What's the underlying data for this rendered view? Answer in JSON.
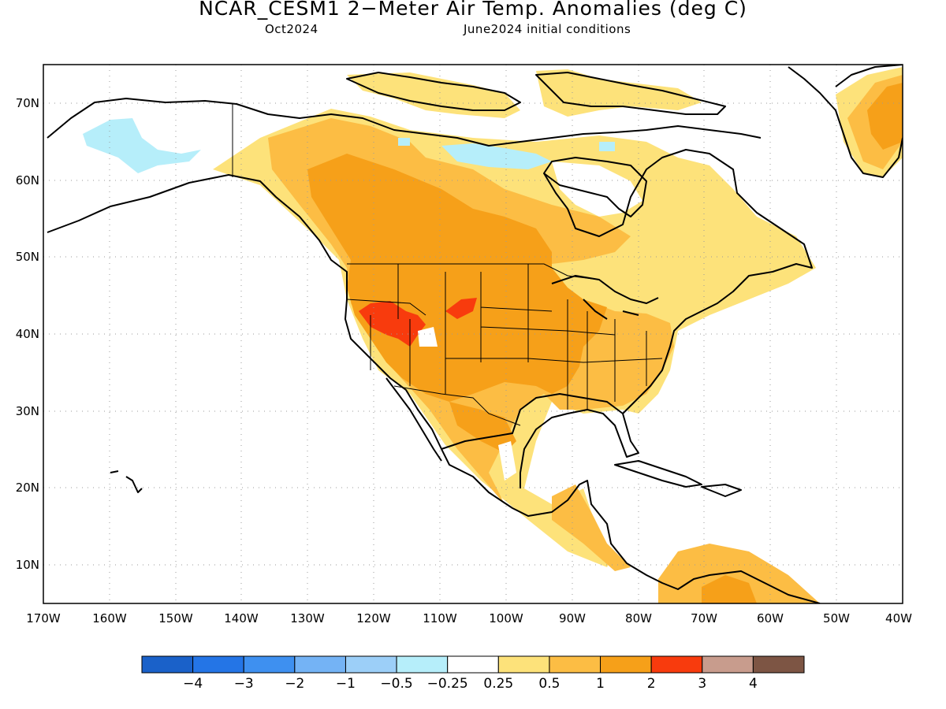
{
  "title": "NCAR_CESM1 2−Meter Air Temp. Anomalies (deg C)",
  "subtitle_left": "Oct2024",
  "subtitle_right": "June2024 initial conditions",
  "lat_labels": [
    "70N",
    "60N",
    "50N",
    "40N",
    "30N",
    "20N",
    "10N"
  ],
  "lon_labels": [
    "170W",
    "160W",
    "150W",
    "140W",
    "130W",
    "120W",
    "110W",
    "100W",
    "90W",
    "80W",
    "70W",
    "60W",
    "50W",
    "40W"
  ],
  "colorbar": {
    "colors": [
      "#1a61c9",
      "#2475e6",
      "#3e90f0",
      "#74b3f5",
      "#9ccff8",
      "#b6eefa",
      "#ffffff",
      "#fde27a",
      "#fcbd44",
      "#f6a019",
      "#f83b0d",
      "#c89c8d",
      "#7d5544"
    ],
    "labels": [
      "−4",
      "−3",
      "−2",
      "−1",
      "−0.5",
      "−0.25",
      "0.25",
      "0.5",
      "1",
      "2",
      "3",
      "4"
    ]
  },
  "map_colors": {
    "light_orange": "#fde27a",
    "orange": "#fcbd44",
    "dark_orange": "#f6a019",
    "red": "#f83b0d",
    "light_blue": "#b6eefa"
  }
}
